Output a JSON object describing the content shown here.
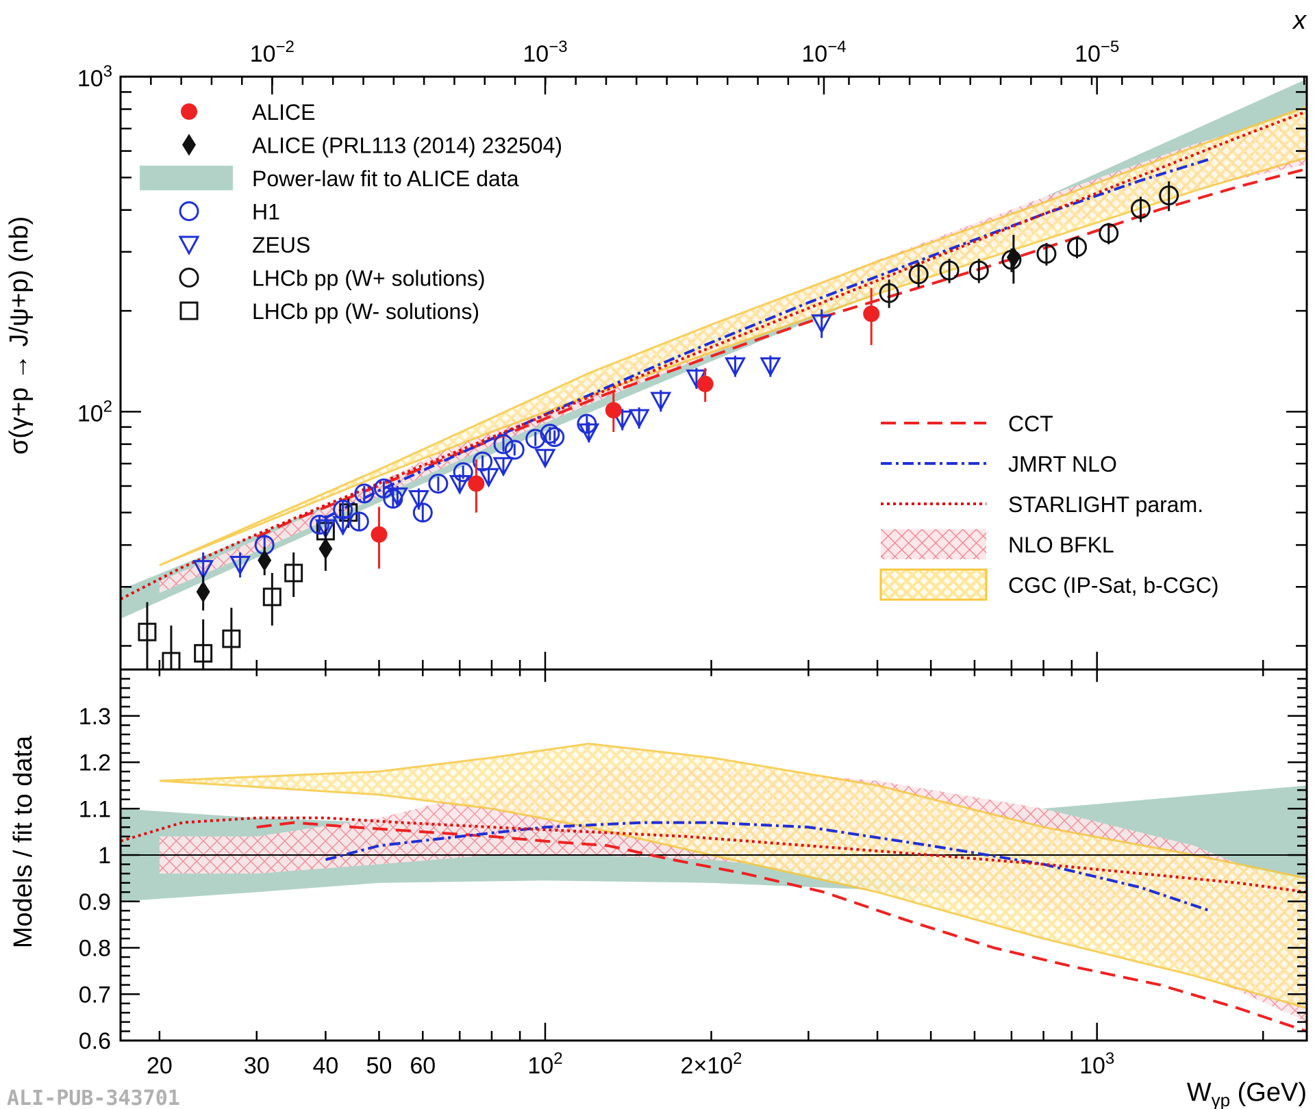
{
  "chart_data": [
    {
      "type": "scatter",
      "panel": "top",
      "ylabel": "σ(γ+p → J/ψ+p) (nb)",
      "x_top_label": "x",
      "y_scale": "log",
      "x_scale": "log",
      "xlim": [
        17,
        2400
      ],
      "ylim": [
        17,
        1000
      ],
      "y_ticks": [
        {
          "value": 100,
          "label": "10",
          "exp": "2"
        },
        {
          "value": 1000,
          "label": "10",
          "exp": "3"
        }
      ],
      "top_ticks": [
        {
          "w": 32,
          "label": "10",
          "exp": "−2"
        },
        {
          "w": 100,
          "label": "10",
          "exp": "−3"
        },
        {
          "w": 320,
          "label": "10",
          "exp": "−4"
        },
        {
          "w": 1000,
          "label": "10",
          "exp": "−5"
        }
      ],
      "legend_markers": [
        {
          "key": "alice",
          "label": "ALICE",
          "color": "#ee2222"
        },
        {
          "key": "alice2014",
          "label": "ALICE (PRL113 (2014) 232504)",
          "color": "#111111"
        },
        {
          "key": "fit",
          "label": "Power-law fit to ALICE data",
          "color": "#b2d2c8"
        },
        {
          "key": "h1",
          "label": "H1",
          "color": "#1f2fd6"
        },
        {
          "key": "zeus",
          "label": "ZEUS",
          "color": "#1f2fd6"
        },
        {
          "key": "lhcb_plus",
          "label": "LHCb pp (W+ solutions)",
          "color": "#111111"
        },
        {
          "key": "lhcb_minus",
          "label": "LHCb pp (W- solutions)",
          "color": "#111111"
        }
      ],
      "legend_models": [
        {
          "key": "cct",
          "label": "CCT",
          "color": "#ee2222"
        },
        {
          "key": "jmrt",
          "label": "JMRT NLO",
          "color": "#1f2fd6"
        },
        {
          "key": "starlight",
          "label": "STARLIGHT param.",
          "color": "#dd1111"
        },
        {
          "key": "bfkl",
          "label": "NLO BFKL",
          "color": "#f4a0a8"
        },
        {
          "key": "cgc",
          "label": "CGC (IP-Sat, b-CGC)",
          "color": "#f5c842"
        }
      ],
      "series": [
        {
          "name": "ALICE",
          "points": [
            [
              50,
              43,
              9
            ],
            [
              75,
              61,
              11
            ],
            [
              133,
              101,
              14
            ],
            [
              195,
              121,
              14
            ],
            [
              390,
              196,
              38
            ]
          ]
        },
        {
          "name": "ALICE (PRL113 (2014) 232504)",
          "points": [
            [
              24,
              29,
              3.5
            ],
            [
              31,
              36,
              3.5
            ],
            [
              40,
              39,
              5.5
            ],
            [
              706,
              289,
              48
            ]
          ]
        },
        {
          "name": "H1",
          "points": [
            [
              31,
              40,
              3
            ],
            [
              39,
              46,
              3
            ],
            [
              43,
              51,
              3
            ],
            [
              46,
              47,
              3
            ],
            [
              53,
              55,
              3
            ],
            [
              47,
              57,
              3
            ],
            [
              51,
              59,
              3
            ],
            [
              60,
              50,
              3
            ],
            [
              64,
              61,
              3
            ],
            [
              71,
              66,
              3
            ],
            [
              77,
              71,
              3
            ],
            [
              88,
              77,
              3
            ],
            [
              96,
              83,
              4
            ],
            [
              102,
              86,
              4
            ],
            [
              104,
              84,
              4
            ],
            [
              119,
              92,
              5
            ],
            [
              84,
              80,
              4
            ]
          ]
        },
        {
          "name": "ZEUS",
          "points": [
            [
              24,
              34,
              4
            ],
            [
              28,
              35,
              3
            ],
            [
              40,
              45,
              4
            ],
            [
              43,
              46,
              3
            ],
            [
              54,
              56,
              4
            ],
            [
              59,
              55,
              4
            ],
            [
              70,
              61,
              4
            ],
            [
              79,
              64,
              4
            ],
            [
              84,
              69,
              4
            ],
            [
              100,
              73,
              4
            ],
            [
              120,
              87,
              6
            ],
            [
              138,
              95,
              7
            ],
            [
              148,
              96,
              7
            ],
            [
              162,
              108,
              8
            ],
            [
              188,
              126,
              9
            ],
            [
              221,
              137,
              10
            ],
            [
              256,
              137,
              10
            ],
            [
              317,
              184,
              18
            ]
          ]
        },
        {
          "name": "LHCb pp (W+ solutions)",
          "points": [
            [
              420,
              226,
              22
            ],
            [
              475,
              257,
              22
            ],
            [
              540,
              264,
              22
            ],
            [
              611,
              264,
              22
            ],
            [
              700,
              284,
              23
            ],
            [
              810,
              296,
              23
            ],
            [
              920,
              310,
              23
            ],
            [
              1050,
              341,
              25
            ],
            [
              1200,
              403,
              35
            ],
            [
              1350,
              442,
              45
            ]
          ]
        },
        {
          "name": "LHCb pp (W- solutions)",
          "points": [
            [
              19,
              22,
              5
            ],
            [
              21,
              18,
              5
            ],
            [
              24,
              19,
              5
            ],
            [
              27,
              21,
              5
            ],
            [
              32,
              28,
              5
            ],
            [
              35,
              33,
              5
            ],
            [
              40,
              44,
              5
            ],
            [
              44,
              50,
              5
            ]
          ]
        }
      ]
    },
    {
      "type": "line",
      "panel": "bottom",
      "xlabel": "Wγp (GeV)",
      "ylabel": "Models / fit to data",
      "ylim": [
        0.6,
        1.4
      ],
      "y_ticks": [
        0.6,
        0.7,
        0.8,
        0.9,
        1,
        1.1,
        1.2,
        1.3
      ],
      "x_ticks": [
        {
          "w": 20,
          "label": "20"
        },
        {
          "w": 30,
          "label": "30"
        },
        {
          "w": 40,
          "label": "40"
        },
        {
          "w": 50,
          "label": "50"
        },
        {
          "w": 60,
          "label": "60"
        },
        {
          "w": 100,
          "label": "10",
          "exp": "2"
        },
        {
          "w": 200,
          "label": "2×10",
          "exp": "2"
        },
        {
          "w": 1000,
          "label": "10",
          "exp": "3"
        }
      ],
      "series": [
        {
          "name": "CCT",
          "x": [
            30,
            35,
            45,
            60,
            80,
            100,
            130,
            170,
            230,
            320,
            450,
            650,
            900,
            1300,
            1800,
            2400
          ],
          "y": [
            1.06,
            1.07,
            1.06,
            1.05,
            1.04,
            1.03,
            1.02,
            0.99,
            0.96,
            0.92,
            0.86,
            0.8,
            0.76,
            0.72,
            0.67,
            0.62
          ]
        },
        {
          "name": "JMRT NLO",
          "x": [
            40,
            50,
            70,
            100,
            150,
            200,
            300,
            500,
            800,
            1200,
            1600
          ],
          "y": [
            0.99,
            1.02,
            1.04,
            1.06,
            1.07,
            1.07,
            1.06,
            1.02,
            0.98,
            0.93,
            0.88
          ]
        },
        {
          "name": "STARLIGHT param.",
          "x": [
            17,
            22,
            30,
            40,
            55,
            80,
            120,
            180,
            300,
            500,
            800,
            1200,
            1800,
            2400
          ],
          "y": [
            1.03,
            1.07,
            1.08,
            1.08,
            1.07,
            1.06,
            1.05,
            1.04,
            1.02,
            1.0,
            0.98,
            0.96,
            0.94,
            0.92
          ]
        },
        {
          "name": "Power-law fit band",
          "x": [
            17,
            30,
            50,
            100,
            200,
            500,
            1000,
            2400
          ],
          "upper": [
            1.1,
            1.08,
            1.07,
            1.06,
            1.06,
            1.08,
            1.11,
            1.15
          ],
          "lower": [
            0.9,
            0.92,
            0.94,
            0.945,
            0.94,
            0.92,
            0.89,
            0.85
          ]
        },
        {
          "name": "NLO BFKL band",
          "x": [
            20,
            30,
            50,
            80,
            120,
            200,
            400,
            800,
            1500,
            2400
          ],
          "upper": [
            1.04,
            1.04,
            1.08,
            1.14,
            1.19,
            1.19,
            1.16,
            1.1,
            1.02,
            0.92
          ],
          "lower": [
            0.96,
            0.96,
            0.98,
            1.0,
            1.0,
            0.99,
            0.95,
            0.88,
            0.75,
            0.64
          ]
        },
        {
          "name": "CGC band",
          "x": [
            20,
            50,
            80,
            120,
            200,
            400,
            800,
            1500,
            2400
          ],
          "upper": [
            1.16,
            1.18,
            1.21,
            1.24,
            1.21,
            1.15,
            1.06,
            1.0,
            0.95
          ],
          "lower": [
            1.16,
            1.13,
            1.1,
            1.06,
            1.0,
            0.92,
            0.82,
            0.74,
            0.67
          ]
        }
      ]
    }
  ],
  "watermark": "ALI-PUB-343701"
}
